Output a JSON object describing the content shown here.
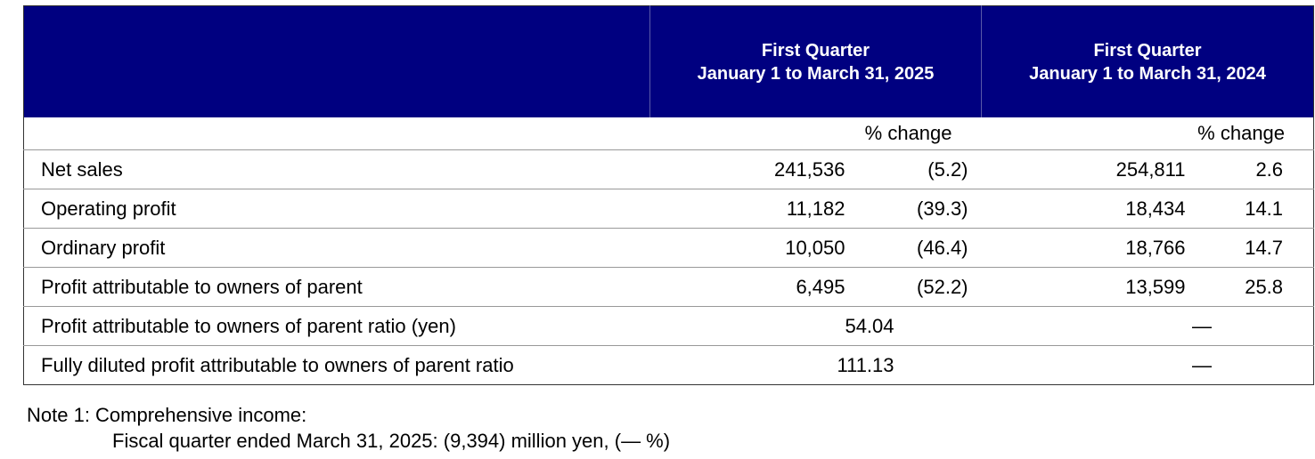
{
  "table": {
    "header": [
      [
        "First Quarter",
        "January 1 to March 31, 2025"
      ],
      [
        "First Quarter",
        "January 1 to March 31, 2024"
      ]
    ],
    "sub_header": [
      "% change",
      "% change"
    ],
    "rows": [
      {
        "label": "Net sales",
        "cells": [
          "241,536",
          "(5.2)",
          "254,811",
          "2.6"
        ]
      },
      {
        "label": "Operating profit",
        "cells": [
          "11,182",
          "(39.3)",
          "18,434",
          "14.1"
        ]
      },
      {
        "label": "Ordinary profit",
        "cells": [
          "10,050",
          "(46.4)",
          "18,766",
          "14.7"
        ]
      },
      {
        "label": "Profit attributable to owners of parent",
        "cells": [
          "6,495",
          "(52.2)",
          "13,599",
          "25.8"
        ]
      },
      {
        "label": "Profit attributable to owners of parent ratio (yen)",
        "cells": [
          "54.04",
          "—"
        ]
      },
      {
        "label": "Fully diluted profit attributable to owners of parent ratio",
        "cells": [
          "111.13",
          "—"
        ]
      }
    ]
  },
  "notes": {
    "title": "Note 1: Comprehensive income:",
    "lines": [
      "Fiscal quarter ended March 31, 2025: (9,394) million yen, (— %)"
    ]
  }
}
